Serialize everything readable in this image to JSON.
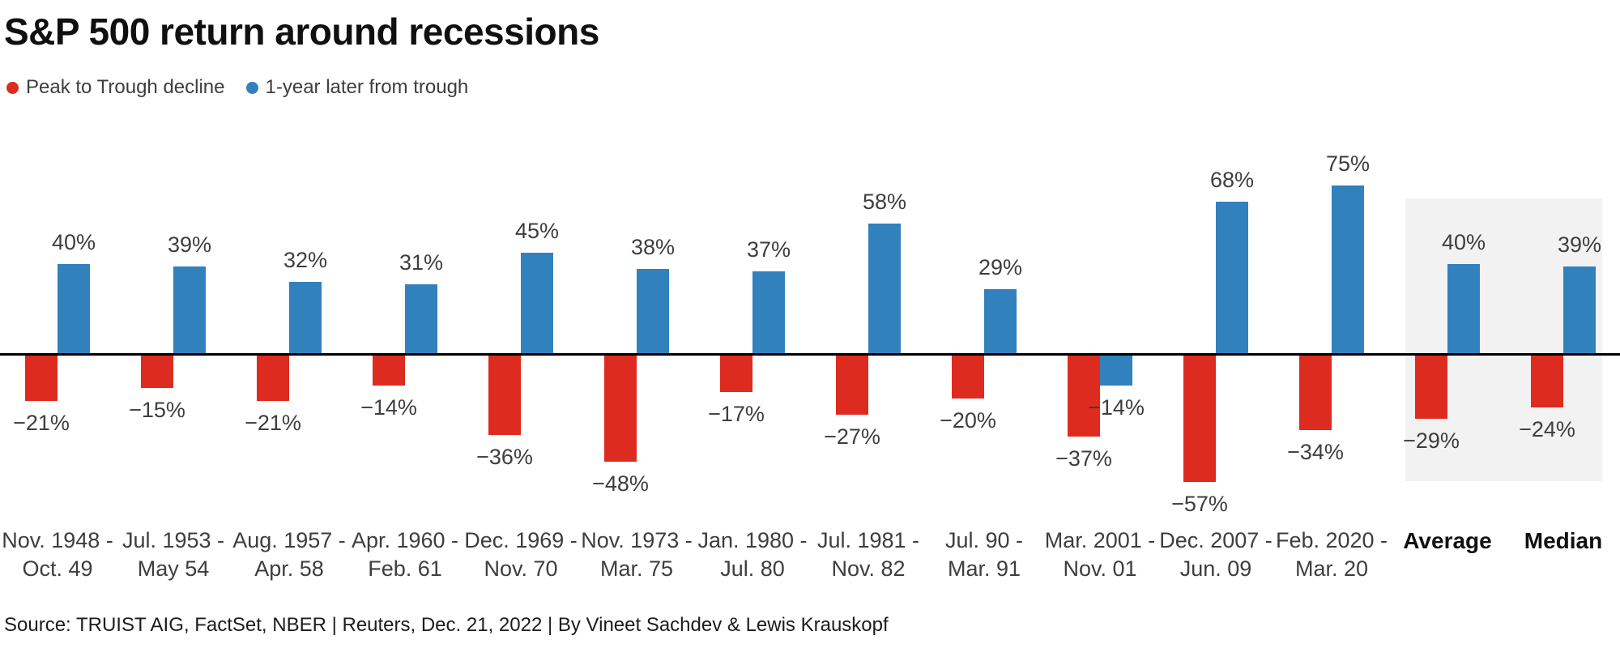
{
  "title": "S&P 500 return around recessions",
  "source_line": "Source: TRUIST AIG, FactSet, NBER | Reuters, Dec. 21, 2022 | By Vineet Sachdev & Lewis Krauskopf",
  "legend": {
    "items": [
      {
        "label": "Peak to Trough decline",
        "color": "#de2b20"
      },
      {
        "label": "1-year later from trough",
        "color": "#3181bd"
      }
    ]
  },
  "chart_data": {
    "type": "bar",
    "title": "S&P 500 return around recessions",
    "ylabel": "",
    "xlabel": "",
    "ylim": [
      -60,
      80
    ],
    "grid": false,
    "legend_position": "top-left",
    "baseline": 0,
    "categories": [
      {
        "line1": "Nov. 1948 -",
        "line2": "Oct. 49",
        "bold": false
      },
      {
        "line1": "Jul. 1953 -",
        "line2": "May 54",
        "bold": false
      },
      {
        "line1": "Aug. 1957 -",
        "line2": "Apr. 58",
        "bold": false
      },
      {
        "line1": "Apr. 1960 -",
        "line2": "Feb. 61",
        "bold": false
      },
      {
        "line1": "Dec. 1969 -",
        "line2": "Nov. 70",
        "bold": false
      },
      {
        "line1": "Nov. 1973 -",
        "line2": "Mar. 75",
        "bold": false
      },
      {
        "line1": "Jan. 1980 -",
        "line2": "Jul. 80",
        "bold": false
      },
      {
        "line1": "Jul. 1981 -",
        "line2": "Nov. 82",
        "bold": false
      },
      {
        "line1": "Jul. 90 -",
        "line2": "Mar. 91",
        "bold": false
      },
      {
        "line1": "Mar. 2001 -",
        "line2": "Nov. 01",
        "bold": false
      },
      {
        "line1": "Dec. 2007 -",
        "line2": "Jun. 09",
        "bold": false
      },
      {
        "line1": "Feb. 2020 -",
        "line2": "Mar. 20",
        "bold": false
      },
      {
        "line1": "Average",
        "line2": "",
        "bold": true
      },
      {
        "line1": "Median",
        "line2": "",
        "bold": true
      }
    ],
    "series": [
      {
        "name": "Peak to Trough decline",
        "color": "#de2b20",
        "values": [
          -21,
          -15,
          -21,
          -14,
          -36,
          -48,
          -17,
          -27,
          -20,
          -37,
          -57,
          -34,
          -29,
          -24
        ],
        "labels": [
          "−21%",
          "−15%",
          "−21%",
          "−14%",
          "−36%",
          "−48%",
          "−17%",
          "−27%",
          "−20%",
          "−37%",
          "−57%",
          "−34%",
          "−29%",
          "−24%"
        ]
      },
      {
        "name": "1-year later from trough",
        "color": "#3181bd",
        "values": [
          40,
          39,
          32,
          31,
          45,
          38,
          37,
          58,
          29,
          -14,
          68,
          75,
          40,
          39
        ],
        "labels": [
          "40%",
          "39%",
          "32%",
          "31%",
          "45%",
          "38%",
          "37%",
          "58%",
          "29%",
          "−14%",
          "68%",
          "75%",
          "40%",
          "39%"
        ]
      }
    ],
    "highlight": {
      "categories": [
        "Average",
        "Median"
      ],
      "color": "#f2f2f2"
    }
  }
}
